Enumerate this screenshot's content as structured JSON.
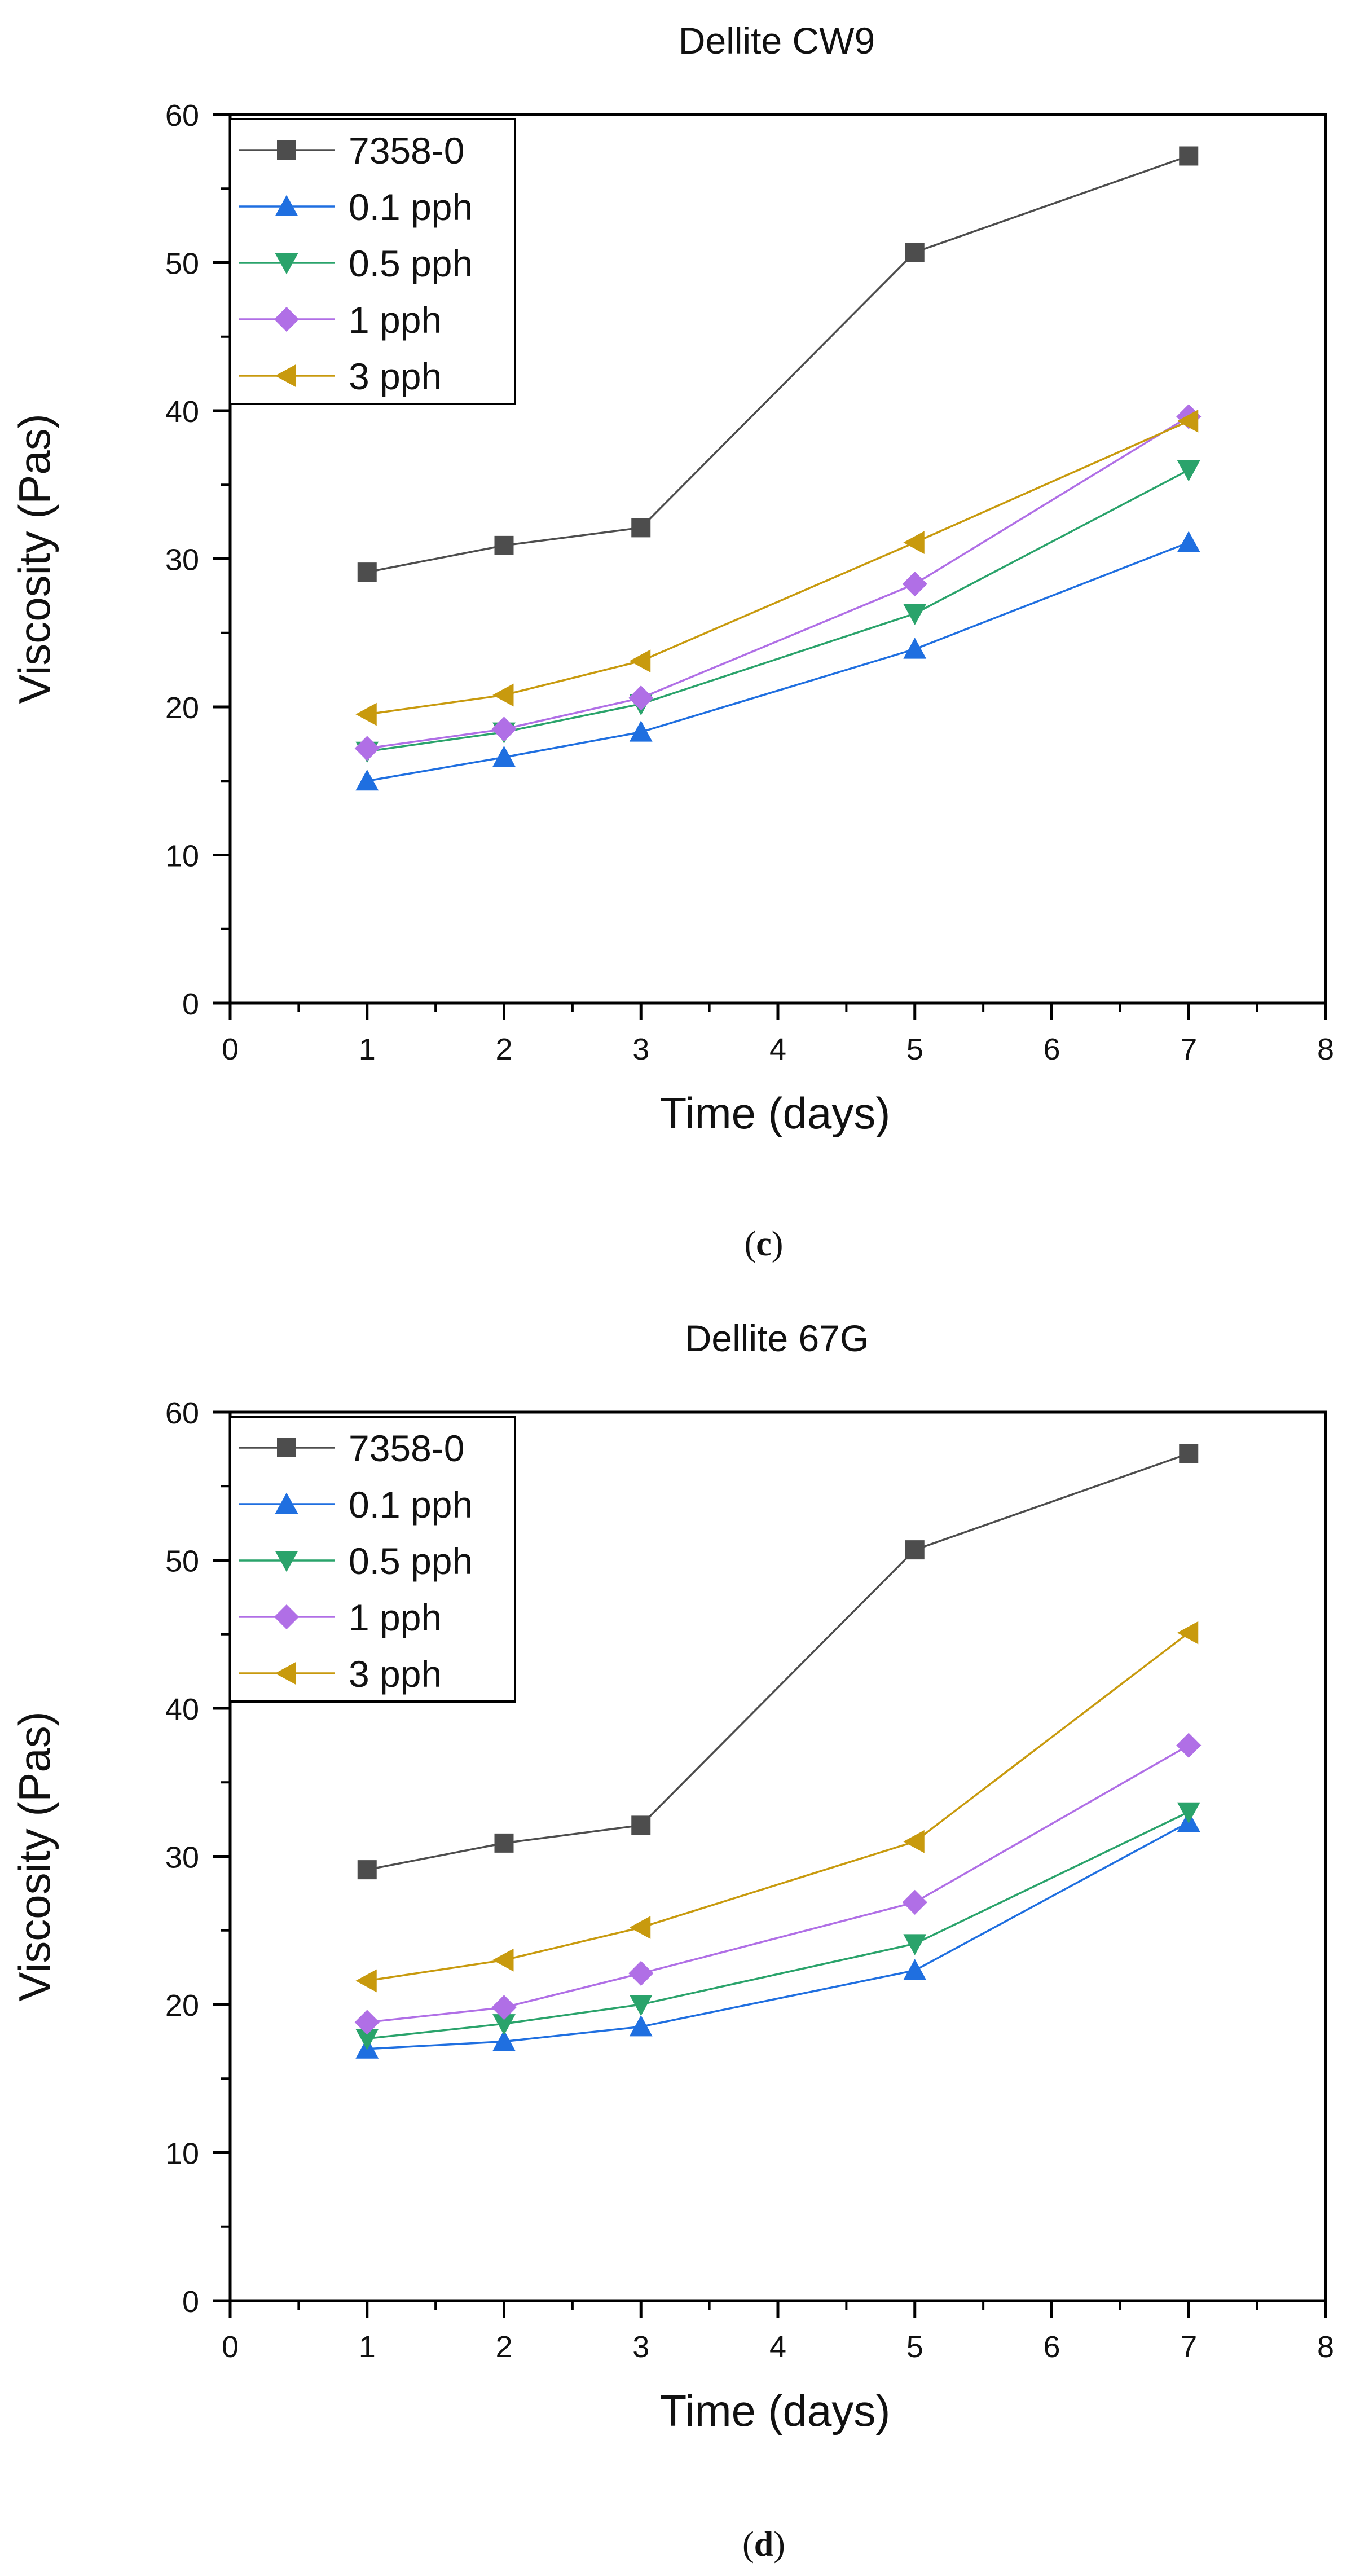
{
  "chart_data": [
    {
      "type": "line",
      "title": "Dellite CW9",
      "xlabel": "Time (days)",
      "ylabel": "Viscosity (Pas)",
      "xlim": [
        0,
        8
      ],
      "ylim": [
        0,
        60
      ],
      "xticks": [
        "0",
        "1",
        "2",
        "3",
        "4",
        "5",
        "6",
        "7",
        "8"
      ],
      "yticks": [
        "0",
        "10",
        "20",
        "30",
        "40",
        "50",
        "60"
      ],
      "legend_position": "top-left",
      "panel_letter": "c",
      "panel_open": "(",
      "panel_close": ")",
      "x": [
        1,
        2,
        3,
        5,
        7
      ],
      "series": [
        {
          "name": "7358-0",
          "marker": "square",
          "color": "#4d4d4d",
          "values": [
            29.1,
            30.9,
            32.1,
            50.7,
            57.2
          ]
        },
        {
          "name": "0.1 pph",
          "marker": "triangle-up",
          "color": "#1f6fe0",
          "values": [
            15.0,
            16.6,
            18.3,
            23.9,
            31.1
          ]
        },
        {
          "name": "0.5 pph",
          "marker": "triangle-down",
          "color": "#2aa36b",
          "values": [
            17.0,
            18.3,
            20.2,
            26.3,
            36.0
          ]
        },
        {
          "name": "1 pph",
          "marker": "diamond",
          "color": "#b06fe6",
          "values": [
            17.2,
            18.5,
            20.6,
            28.3,
            39.6
          ]
        },
        {
          "name": "3 pph",
          "marker": "triangle-left",
          "color": "#c89a0e",
          "values": [
            19.5,
            20.8,
            23.1,
            31.1,
            39.3
          ]
        }
      ]
    },
    {
      "type": "line",
      "title": "Dellite 67G",
      "xlabel": "Time (days)",
      "ylabel": "Viscosity (Pas)",
      "xlim": [
        0,
        8
      ],
      "ylim": [
        0,
        60
      ],
      "xticks": [
        "0",
        "1",
        "2",
        "3",
        "4",
        "5",
        "6",
        "7",
        "8"
      ],
      "yticks": [
        "0",
        "10",
        "20",
        "30",
        "40",
        "50",
        "60"
      ],
      "legend_position": "top-left",
      "panel_letter": "d",
      "panel_open": "(",
      "panel_close": ")",
      "x": [
        1,
        2,
        3,
        5,
        7
      ],
      "series": [
        {
          "name": "7358-0",
          "marker": "square",
          "color": "#4d4d4d",
          "values": [
            29.1,
            30.9,
            32.1,
            50.7,
            57.2
          ]
        },
        {
          "name": "0.1 pph",
          "marker": "triangle-up",
          "color": "#1f6fe0",
          "values": [
            17.0,
            17.5,
            18.5,
            22.3,
            32.3
          ]
        },
        {
          "name": "0.5 pph",
          "marker": "triangle-down",
          "color": "#2aa36b",
          "values": [
            17.7,
            18.7,
            20.0,
            24.1,
            33.0
          ]
        },
        {
          "name": "1 pph",
          "marker": "diamond",
          "color": "#b06fe6",
          "values": [
            18.8,
            19.8,
            22.1,
            26.9,
            37.5
          ]
        },
        {
          "name": "3 pph",
          "marker": "triangle-left",
          "color": "#c89a0e",
          "values": [
            21.6,
            23.0,
            25.2,
            31.0,
            45.1
          ]
        }
      ]
    }
  ]
}
